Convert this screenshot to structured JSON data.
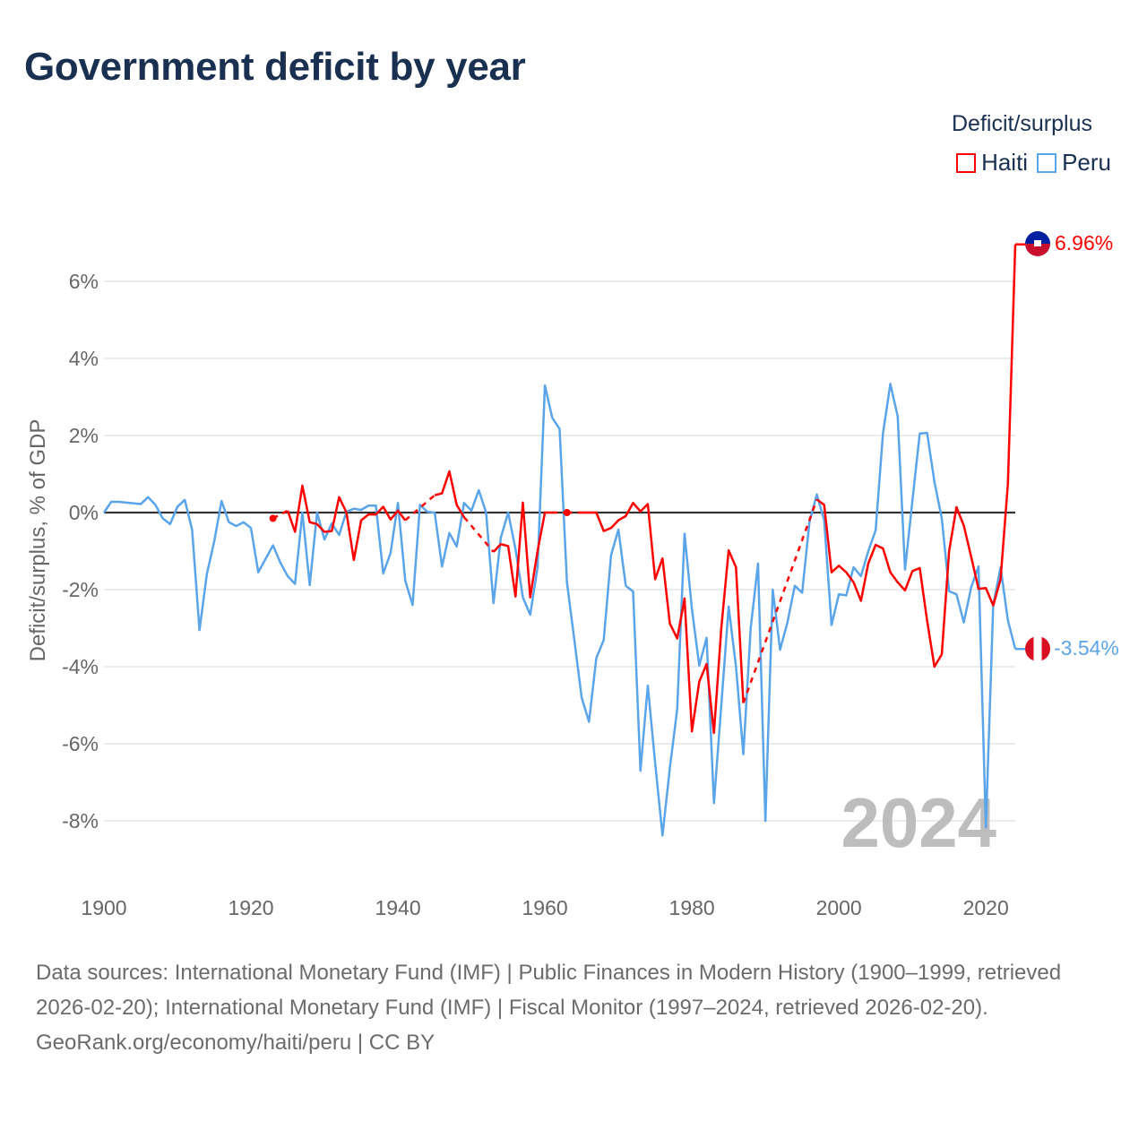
{
  "title": "Government deficit by year",
  "legend": {
    "title": "Deficit/surplus",
    "items": [
      {
        "label": "Haiti",
        "color": "#ff0000"
      },
      {
        "label": "Peru",
        "color": "#5aa5ea"
      }
    ]
  },
  "current_year": "2024",
  "end_labels": {
    "haiti": "6.96%",
    "peru": "-3.54%"
  },
  "footer": {
    "sources": "Data sources: International Monetary Fund (IMF) | Public Finances in Modern History (1900–1999, retrieved 2026-02-20); International Monetary Fund (IMF) | Fiscal Monitor (1997–2024, retrieved 2026-02-20).",
    "credit": "GeoRank.org/economy/haiti/peru | CC BY"
  },
  "chart_data": {
    "type": "line",
    "title": "Government deficit by year",
    "xlabel": "",
    "ylabel": "Deficit/surplus, % of GDP",
    "xlim": [
      1900,
      2024
    ],
    "ylim": [
      -9.3,
      7.5
    ],
    "xticks": [
      1900,
      1920,
      1940,
      1960,
      1980,
      2000,
      2020
    ],
    "xtick_labels": [
      "1900",
      "1920",
      "1940",
      "1960",
      "1980",
      "2000",
      "2020"
    ],
    "yticks": [
      -8,
      -6,
      -4,
      -2,
      0,
      2,
      4,
      6
    ],
    "ytick_labels": [
      "-8%",
      "-6%",
      "-4%",
      "-2%",
      "0%",
      "2%",
      "4%",
      "6%"
    ],
    "grid": true,
    "legend_position": "top-right",
    "series": [
      {
        "name": "Peru",
        "color": "#5aa5ea",
        "start_year": 1900,
        "values": [
          0,
          0.28,
          0.28,
          0.26,
          0.24,
          0.22,
          0.4,
          0.2,
          -0.15,
          -0.3,
          0.15,
          0.33,
          -0.45,
          -3.05,
          -1.6,
          -0.75,
          0.3,
          -0.25,
          -0.35,
          -0.25,
          -0.4,
          -1.55,
          -1.2,
          -0.85,
          -1.3,
          -1.65,
          -1.85,
          0,
          -1.88,
          0,
          -0.7,
          -0.28,
          -0.58,
          0.02,
          0.1,
          0.07,
          0.18,
          0.18,
          -1.58,
          -1.05,
          0.25,
          -1.77,
          -2.4,
          0.2,
          0.02,
          0,
          -1.4,
          -0.53,
          -0.88,
          0.25,
          0.05,
          0.58,
          0,
          -2.35,
          -0.65,
          0,
          -0.95,
          -2.2,
          -2.65,
          -1.42,
          3.3,
          2.46,
          2.17,
          -1.81,
          -3.3,
          -4.8,
          -5.43,
          -3.77,
          -3.31,
          -1.11,
          -0.44,
          -1.9,
          -2.05,
          -6.7,
          -4.49,
          -6.5,
          -8.38,
          -6.63,
          -5.1,
          -0.55,
          -2.5,
          -3.97,
          -3.25,
          -7.54,
          -5.0,
          -2.44,
          -4.0,
          -6.27,
          -3.0,
          -1.32,
          -8.0,
          -2.0,
          -3.56,
          -2.85,
          -1.9,
          -2.08,
          -0.24,
          0.47,
          -0.2,
          -2.92,
          -2.12,
          -2.15,
          -1.42,
          -1.65,
          -1.0,
          -0.46,
          2.05,
          3.34,
          2.5,
          -1.48,
          0.3,
          2.05,
          2.07,
          0.8,
          -0.15,
          -2.04,
          -2.12,
          -2.85,
          -1.94,
          -1.4,
          -8.17,
          -2.4,
          -1.42,
          -2.8,
          -3.54
        ]
      },
      {
        "name": "Haiti",
        "color": "#ff0000",
        "start_year": 1923,
        "values": [
          -0.15,
          null,
          0.05,
          -0.5,
          0.7,
          -0.25,
          -0.3,
          -0.5,
          -0.48,
          0.4,
          0,
          -1.23,
          -0.2,
          -0.05,
          -0.05,
          0.15,
          -0.18,
          0.05,
          -0.2,
          null,
          null,
          null,
          0.45,
          0.5,
          1.07,
          0.2,
          -0.12,
          null,
          null,
          null,
          -1.02,
          -0.82,
          -0.87,
          -2.18,
          0.26,
          -2.2,
          -1.0,
          0,
          0,
          null,
          0,
          null,
          0,
          0,
          0,
          -0.48,
          -0.4,
          -0.2,
          -0.09,
          0.25,
          0.03,
          0.22,
          -1.73,
          -1.19,
          -2.88,
          -3.27,
          -2.23,
          -5.68,
          -4.39,
          -3.93,
          -5.72,
          -3.0,
          -0.98,
          -1.42,
          -4.94,
          null,
          null,
          null,
          null,
          null,
          null,
          null,
          null,
          null,
          0.34,
          0.2,
          -1.55,
          -1.38,
          -1.55,
          -1.81,
          -2.29,
          -1.32,
          -0.84,
          -0.93,
          -1.55,
          -1.81,
          -2.02,
          -1.52,
          -1.44,
          -2.8,
          -4.0,
          -3.68,
          -1.0,
          0.14,
          -0.34,
          -1.15,
          -1.98,
          -1.96,
          -2.41,
          -1.73,
          0.76,
          6.96
        ]
      }
    ]
  }
}
